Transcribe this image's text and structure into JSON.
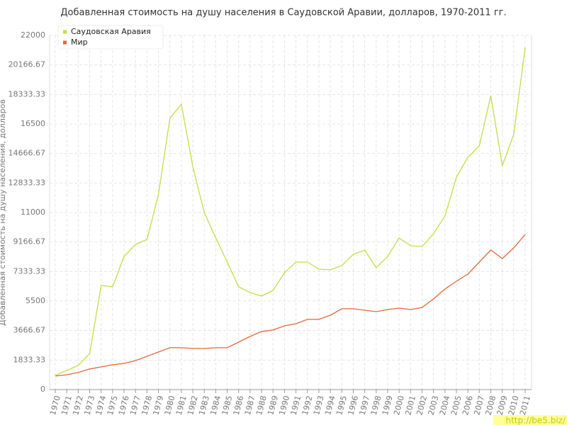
{
  "chart_data": {
    "type": "line",
    "title": "Добавленная стоимость на душу населения в Саудовской Аравии, долларов, 1970-2011 гг.",
    "y_label": "Добавленная стоимость на душу населения, долларов",
    "watermark": "http://be5.biz/",
    "categories": [
      "1970",
      "1971",
      "1972",
      "1973",
      "1974",
      "1975",
      "1976",
      "1977",
      "1978",
      "1979",
      "1980",
      "1981",
      "1982",
      "1983",
      "1984",
      "1985",
      "1986",
      "1987",
      "1988",
      "1989",
      "1990",
      "1991",
      "1992",
      "1993",
      "1994",
      "1995",
      "1996",
      "1997",
      "1998",
      "1999",
      "2000",
      "2001",
      "2002",
      "2003",
      "2004",
      "2005",
      "2006",
      "2007",
      "2008",
      "2009",
      "2010",
      "2011"
    ],
    "series": [
      {
        "name": "Саудовская Аравия",
        "color": "#c2de45",
        "values": [
          880,
          1190,
          1500,
          2240,
          6470,
          6380,
          8270,
          9020,
          9330,
          12100,
          16850,
          17730,
          13860,
          11000,
          9420,
          7920,
          6380,
          6030,
          5810,
          6160,
          7260,
          7920,
          7920,
          7480,
          7440,
          7700,
          8400,
          8670,
          7570,
          8270,
          9420,
          8930,
          8890,
          9680,
          10780,
          13200,
          14430,
          15140,
          18260,
          13900,
          15840,
          21250
        ]
      },
      {
        "name": "Мир",
        "color": "#e0673a",
        "values": [
          840,
          920,
          1060,
          1280,
          1410,
          1540,
          1630,
          1800,
          2070,
          2330,
          2600,
          2600,
          2550,
          2550,
          2600,
          2600,
          2950,
          3300,
          3610,
          3700,
          3960,
          4090,
          4360,
          4360,
          4620,
          5020,
          5020,
          4930,
          4840,
          4970,
          5060,
          4970,
          5100,
          5630,
          6250,
          6730,
          7170,
          7920,
          8670,
          8140,
          8800,
          9640
        ]
      }
    ],
    "ylim": [
      0,
      22000
    ],
    "yticks": [
      0,
      1833.33,
      3666.67,
      5500,
      7333.33,
      9166.67,
      11000,
      12833.33,
      14666.67,
      16500,
      18333.33,
      20166.67,
      22000
    ],
    "grid": true,
    "legend": "top-left"
  }
}
